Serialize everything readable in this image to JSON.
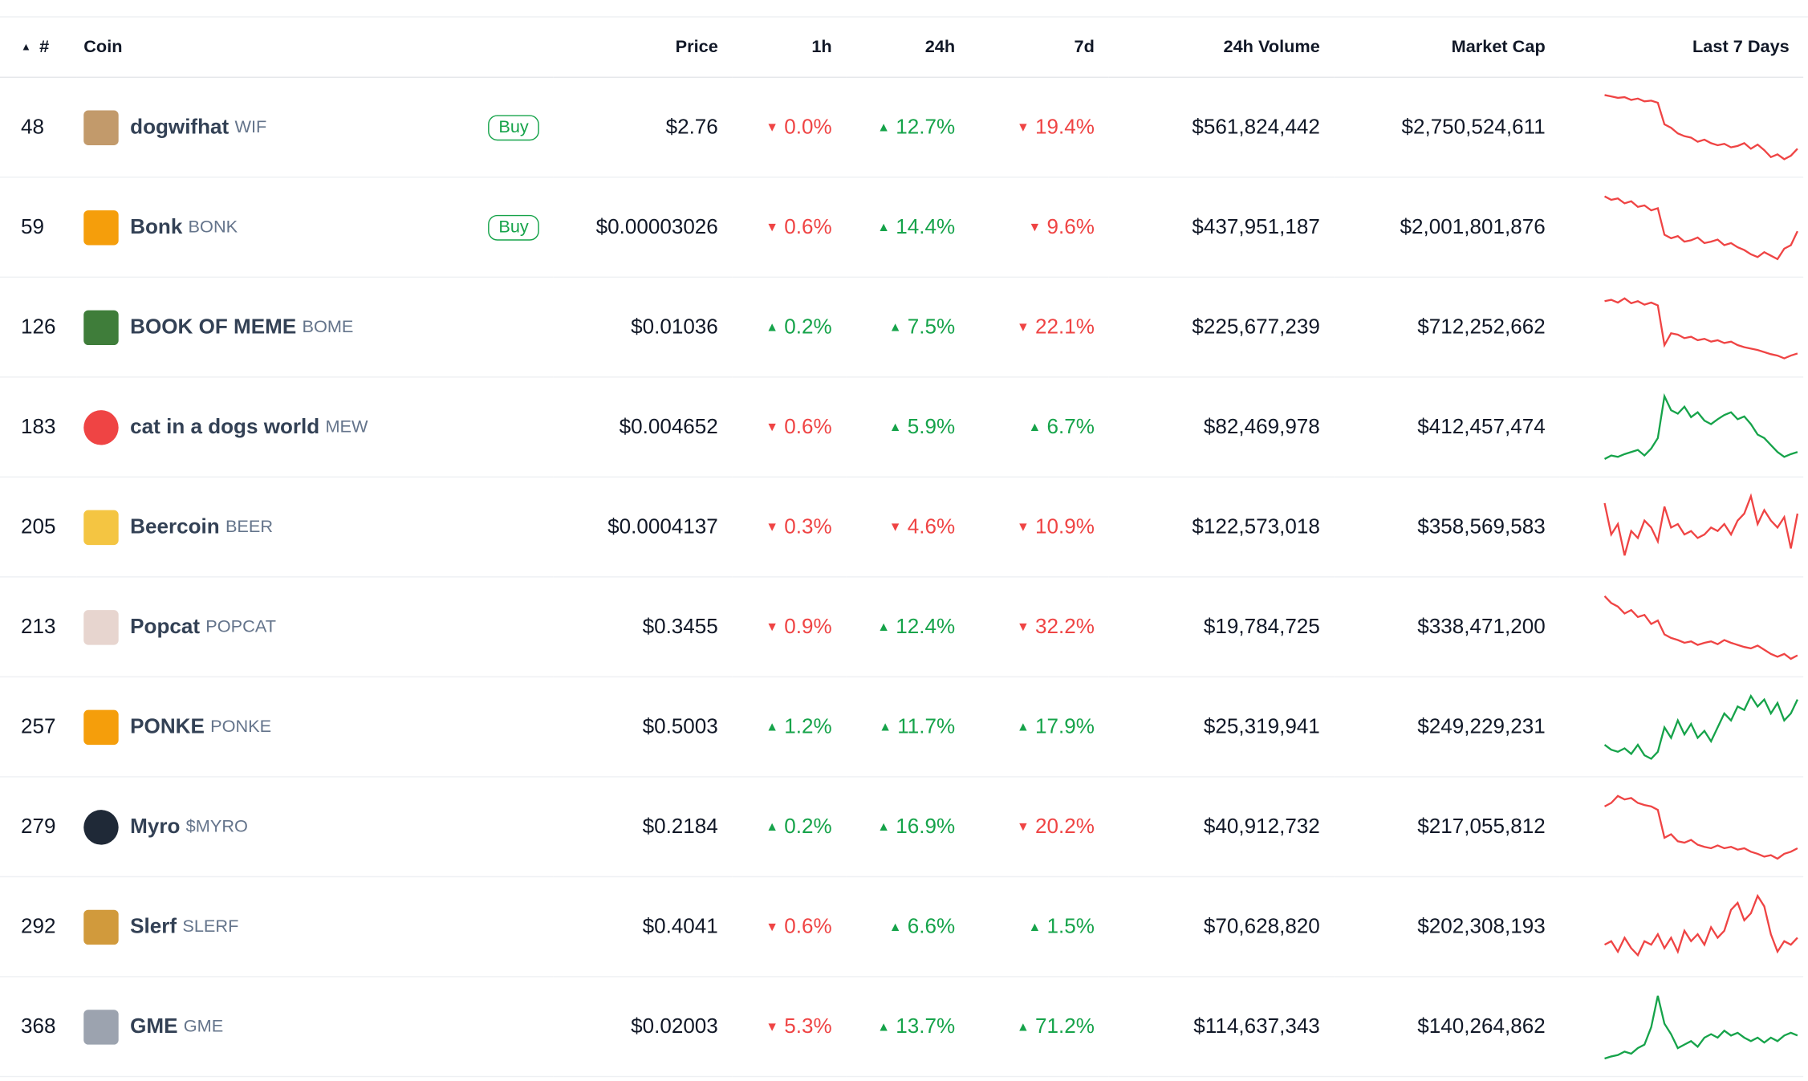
{
  "header": {
    "rank": "#",
    "coin": "Coin",
    "price": "Price",
    "h1": "1h",
    "h24": "24h",
    "d7": "7d",
    "volume": "24h Volume",
    "mcap": "Market Cap",
    "spark": "Last 7 Days"
  },
  "icons": {
    "sort": "sort-ascending-icon",
    "up": "caret-up-icon",
    "down": "caret-down-icon"
  },
  "colors": {
    "up": "#16a34a",
    "down": "#ef4444",
    "buy": "#16a34a"
  },
  "rows": [
    {
      "rank": "48",
      "name": "dogwifhat",
      "symbol": "WIF",
      "buy": "Buy",
      "price": "$2.76",
      "h1": "0.0%",
      "h1_dir": "down",
      "h24": "12.7%",
      "h24_dir": "up",
      "d7": "19.4%",
      "d7_dir": "down",
      "volume": "$561,824,442",
      "mcap": "$2,750,524,611",
      "trend": "down",
      "spark": [
        0.97,
        0.95,
        0.93,
        0.94,
        0.9,
        0.92,
        0.88,
        0.89,
        0.86,
        0.55,
        0.5,
        0.42,
        0.38,
        0.36,
        0.3,
        0.33,
        0.28,
        0.25,
        0.27,
        0.22,
        0.24,
        0.28,
        0.2,
        0.26,
        0.18,
        0.08,
        0.12,
        0.05,
        0.1,
        0.2
      ]
    },
    {
      "rank": "59",
      "name": "Bonk",
      "symbol": "BONK",
      "buy": "Buy",
      "price": "$0.00003026",
      "h1": "0.6%",
      "h1_dir": "down",
      "h24": "14.4%",
      "h24_dir": "up",
      "d7": "9.6%",
      "d7_dir": "down",
      "volume": "$437,951,187",
      "mcap": "$2,001,801,876",
      "trend": "down",
      "spark": [
        0.95,
        0.9,
        0.92,
        0.85,
        0.88,
        0.8,
        0.82,
        0.75,
        0.78,
        0.4,
        0.35,
        0.38,
        0.3,
        0.32,
        0.36,
        0.28,
        0.3,
        0.33,
        0.25,
        0.28,
        0.22,
        0.18,
        0.12,
        0.08,
        0.15,
        0.1,
        0.05,
        0.2,
        0.25,
        0.45
      ]
    },
    {
      "rank": "126",
      "name": "BOOK OF MEME",
      "symbol": "BOME",
      "buy": "",
      "price": "$0.01036",
      "h1": "0.2%",
      "h1_dir": "up",
      "h24": "7.5%",
      "h24_dir": "up",
      "d7": "22.1%",
      "d7_dir": "down",
      "volume": "$225,677,239",
      "mcap": "$712,252,662",
      "trend": "down",
      "spark": [
        0.88,
        0.9,
        0.86,
        0.92,
        0.85,
        0.88,
        0.83,
        0.86,
        0.82,
        0.25,
        0.42,
        0.4,
        0.35,
        0.37,
        0.32,
        0.34,
        0.3,
        0.32,
        0.28,
        0.3,
        0.25,
        0.22,
        0.2,
        0.18,
        0.15,
        0.12,
        0.1,
        0.06,
        0.1,
        0.13
      ]
    },
    {
      "rank": "183",
      "name": "cat in a dogs world",
      "symbol": "MEW",
      "buy": "",
      "price": "$0.004652",
      "h1": "0.6%",
      "h1_dir": "down",
      "h24": "5.9%",
      "h24_dir": "up",
      "d7": "6.7%",
      "d7_dir": "up",
      "volume": "$82,469,978",
      "mcap": "$412,457,474",
      "trend": "up",
      "spark": [
        0.05,
        0.1,
        0.08,
        0.12,
        0.15,
        0.18,
        0.1,
        0.2,
        0.35,
        0.95,
        0.75,
        0.7,
        0.8,
        0.65,
        0.72,
        0.6,
        0.55,
        0.62,
        0.68,
        0.72,
        0.62,
        0.66,
        0.55,
        0.4,
        0.35,
        0.25,
        0.15,
        0.08,
        0.12,
        0.15
      ]
    },
    {
      "rank": "205",
      "name": "Beercoin",
      "symbol": "BEER",
      "buy": "",
      "price": "$0.0004137",
      "h1": "0.3%",
      "h1_dir": "down",
      "h24": "4.6%",
      "h24_dir": "down",
      "d7": "10.9%",
      "d7_dir": "down",
      "volume": "$122,573,018",
      "mcap": "$358,569,583",
      "trend": "down",
      "spark": [
        0.85,
        0.4,
        0.55,
        0.1,
        0.45,
        0.35,
        0.6,
        0.5,
        0.3,
        0.8,
        0.5,
        0.55,
        0.4,
        0.45,
        0.35,
        0.4,
        0.5,
        0.45,
        0.55,
        0.4,
        0.6,
        0.7,
        0.95,
        0.55,
        0.75,
        0.6,
        0.5,
        0.65,
        0.2,
        0.7
      ]
    },
    {
      "rank": "213",
      "name": "Popcat",
      "symbol": "POPCAT",
      "buy": "",
      "price": "$0.3455",
      "h1": "0.9%",
      "h1_dir": "down",
      "h24": "12.4%",
      "h24_dir": "up",
      "d7": "32.2%",
      "d7_dir": "down",
      "volume": "$19,784,725",
      "mcap": "$338,471,200",
      "trend": "down",
      "spark": [
        0.95,
        0.85,
        0.8,
        0.7,
        0.75,
        0.65,
        0.68,
        0.55,
        0.6,
        0.4,
        0.35,
        0.32,
        0.28,
        0.3,
        0.25,
        0.28,
        0.3,
        0.26,
        0.32,
        0.28,
        0.25,
        0.22,
        0.2,
        0.24,
        0.18,
        0.12,
        0.08,
        0.12,
        0.05,
        0.1
      ]
    },
    {
      "rank": "257",
      "name": "PONKE",
      "symbol": "PONKE",
      "buy": "",
      "price": "$0.5003",
      "h1": "1.2%",
      "h1_dir": "up",
      "h24": "11.7%",
      "h24_dir": "up",
      "d7": "17.9%",
      "d7_dir": "up",
      "volume": "$25,319,941",
      "mcap": "$249,229,231",
      "trend": "up",
      "spark": [
        0.25,
        0.18,
        0.15,
        0.2,
        0.12,
        0.25,
        0.1,
        0.05,
        0.15,
        0.5,
        0.35,
        0.6,
        0.4,
        0.55,
        0.35,
        0.45,
        0.3,
        0.5,
        0.7,
        0.6,
        0.8,
        0.75,
        0.95,
        0.8,
        0.9,
        0.7,
        0.85,
        0.6,
        0.7,
        0.9
      ]
    },
    {
      "rank": "279",
      "name": "Myro",
      "symbol": "$MYRO",
      "buy": "",
      "price": "$0.2184",
      "h1": "0.2%",
      "h1_dir": "up",
      "h24": "16.9%",
      "h24_dir": "up",
      "d7": "20.2%",
      "d7_dir": "down",
      "volume": "$40,912,732",
      "mcap": "$217,055,812",
      "trend": "down",
      "spark": [
        0.8,
        0.85,
        0.95,
        0.9,
        0.92,
        0.85,
        0.82,
        0.8,
        0.75,
        0.35,
        0.4,
        0.3,
        0.28,
        0.32,
        0.25,
        0.22,
        0.2,
        0.24,
        0.2,
        0.22,
        0.18,
        0.2,
        0.15,
        0.12,
        0.08,
        0.1,
        0.05,
        0.12,
        0.15,
        0.2
      ]
    },
    {
      "rank": "292",
      "name": "Slerf",
      "symbol": "SLERF",
      "buy": "",
      "price": "$0.4041",
      "h1": "0.6%",
      "h1_dir": "down",
      "h24": "6.6%",
      "h24_dir": "up",
      "d7": "1.5%",
      "d7_dir": "up",
      "volume": "$70,628,820",
      "mcap": "$202,308,193",
      "trend": "down",
      "spark": [
        0.25,
        0.3,
        0.15,
        0.35,
        0.2,
        0.1,
        0.3,
        0.25,
        0.4,
        0.2,
        0.35,
        0.15,
        0.45,
        0.3,
        0.4,
        0.25,
        0.5,
        0.35,
        0.45,
        0.75,
        0.85,
        0.6,
        0.7,
        0.95,
        0.8,
        0.4,
        0.15,
        0.3,
        0.25,
        0.35
      ]
    },
    {
      "rank": "368",
      "name": "GME",
      "symbol": "GME",
      "buy": "",
      "price": "$0.02003",
      "h1": "5.3%",
      "h1_dir": "down",
      "h24": "13.7%",
      "h24_dir": "up",
      "d7": "71.2%",
      "d7_dir": "up",
      "volume": "$114,637,343",
      "mcap": "$140,264,862",
      "trend": "up",
      "spark": [
        0.05,
        0.08,
        0.1,
        0.15,
        0.12,
        0.2,
        0.25,
        0.5,
        0.95,
        0.55,
        0.4,
        0.2,
        0.25,
        0.3,
        0.22,
        0.35,
        0.4,
        0.35,
        0.45,
        0.38,
        0.42,
        0.35,
        0.3,
        0.35,
        0.28,
        0.35,
        0.3,
        0.38,
        0.42,
        0.38
      ]
    }
  ]
}
